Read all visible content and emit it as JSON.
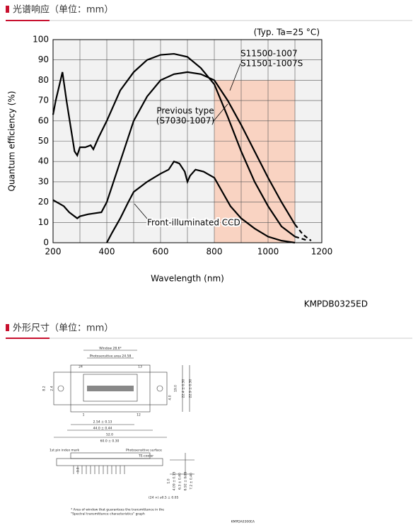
{
  "sections": [
    {
      "title": "光谱响应（单位：mm）"
    },
    {
      "title": "外形尺寸（单位：mm）"
    }
  ],
  "chart_data": {
    "type": "line",
    "condition": "(Typ. Ta=25 °C)",
    "xlabel": "Wavelength (nm)",
    "ylabel": "Quantum efficiency (%)",
    "xlim": [
      200,
      1200
    ],
    "xticks": [
      200,
      400,
      600,
      800,
      1000,
      1200
    ],
    "xgrid_minor": [
      300,
      500,
      700,
      900,
      1100
    ],
    "ylim": [
      0,
      100
    ],
    "yticks": [
      0,
      10,
      20,
      30,
      40,
      50,
      60,
      70,
      80,
      90,
      100
    ],
    "grid": true,
    "dashed_from_x": 1100,
    "highlight": {
      "xlim": [
        800,
        1100
      ],
      "ylim": [
        0,
        80
      ],
      "color": "#f9d3c2"
    },
    "series": [
      {
        "name": [
          "S11500-1007",
          "S11501-1007S"
        ],
        "color": "#000000",
        "x": [
          200,
          240,
          260,
          290,
          300,
          330,
          380,
          400,
          450,
          500,
          550,
          600,
          650,
          700,
          750,
          800,
          850,
          900,
          950,
          1000,
          1050,
          1100,
          1130,
          1160
        ],
        "values": [
          21,
          18,
          15,
          12,
          13,
          14,
          15,
          20,
          40,
          60,
          72,
          80,
          83,
          84,
          83,
          80,
          70,
          58,
          45,
          32,
          20,
          9,
          4,
          1
        ]
      },
      {
        "name": [
          "Previous type",
          "(S7030-1007)"
        ],
        "color": "#000000",
        "x": [
          200,
          210,
          235,
          250,
          280,
          290,
          300,
          320,
          340,
          350,
          370,
          400,
          450,
          500,
          550,
          600,
          650,
          700,
          750,
          800,
          850,
          900,
          950,
          1000,
          1050,
          1100,
          1150
        ],
        "values": [
          63,
          70,
          84,
          70,
          45,
          43,
          47,
          47,
          48,
          46,
          52,
          60,
          75,
          84,
          90,
          92.5,
          93,
          91.5,
          86,
          78,
          62,
          45,
          30,
          18,
          8,
          3,
          1
        ]
      },
      {
        "name": [
          "Front-illuminated CCD"
        ],
        "color": "#000000",
        "x": [
          400,
          420,
          450,
          480,
          500,
          550,
          600,
          630,
          650,
          670,
          690,
          700,
          710,
          730,
          760,
          800,
          830,
          860,
          900,
          950,
          1000,
          1050,
          1100
        ],
        "values": [
          0,
          5,
          12,
          20,
          25,
          30,
          34,
          36,
          40,
          39,
          35,
          30,
          33,
          36,
          35,
          32,
          25,
          18,
          12,
          7,
          3,
          1,
          0
        ]
      }
    ],
    "figure_code": "KMPDB0325ED"
  },
  "drawing": {
    "labels": [
      "Window 28.6*",
      "Photosensitive area 24.58",
      "24",
      "13",
      "1",
      "12",
      "2.54 ± 0.13",
      "44.0 ± 0.44",
      "52.0",
      "60.0 ± 0.30",
      "22.4 ± 0.30",
      "22.9 ± 0.30",
      "19.0",
      "4.0",
      "2.4",
      "8.2"
    ],
    "side_labels": [
      "1st pin index mark",
      "Photosensitive surface",
      "TE-cooler",
      "(24 ×) ⌀0.5 ± 0.05",
      "3.0",
      "1.0",
      "4.09 ± 0.15",
      "6.3 ± 0.40",
      "6.92 ± 0.35",
      "7.2 ± 0.40"
    ],
    "note": [
      "* Area of window that guarantees the transmittance in the",
      "\"Spectral transmittance characteristics\" graph"
    ],
    "figure_code": "KMPDA0300EA"
  }
}
